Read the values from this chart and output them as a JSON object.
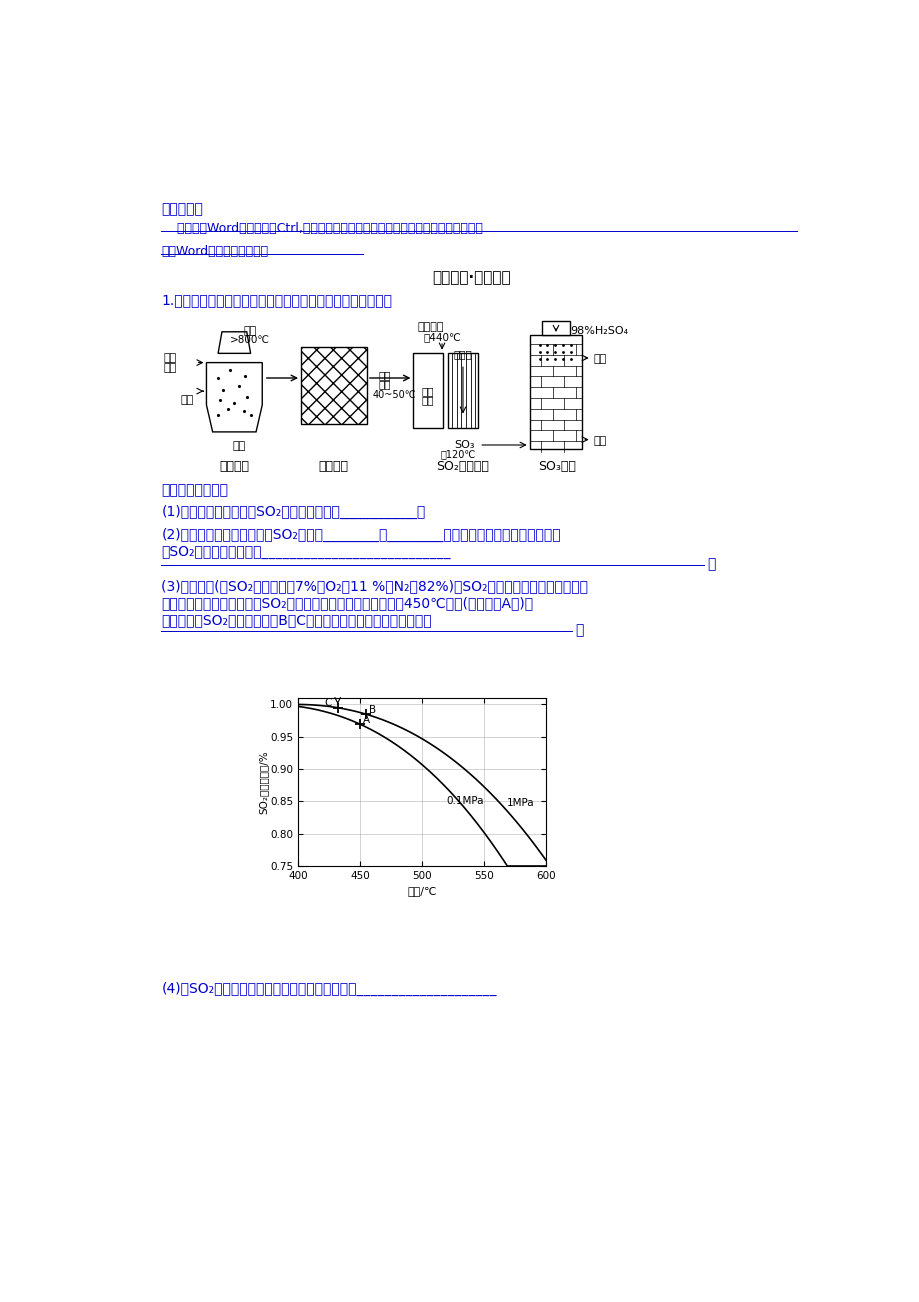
{
  "bg_color": "#ffffff",
  "text_color_blue": "#0000CC",
  "text_color_black": "#000000",
  "warm_tip_label": "温馨提示：",
  "warm_tip_line1": "    此套题为Word版，请按住Ctrl,滑动鼠标滚轴，调节合适的观看比例，答案解析附后。",
  "warm_tip_line2": "关闭Word文档返回原板块。",
  "section_title": "高效演练·跟踪检测",
  "question1_intro": "1.以黄铁矿为原料，采用接触法生产硫酸的流程可简示如下：",
  "q_section_label": "请回答下列问题：",
  "q1": "(1)在炉气制造中，生成SO₂的化学方程式为___________。",
  "q2a": "(2)炉气精制的作用是将含有SO₂的炉气________、________和干燥，如果炉气不经过精制，",
  "q2b": "对SO₂催化氧化的影响是___________________________",
  "q3_line1": "(3)精制炉气(含SO₂体积分数为7%，O₂为11 %，N₂为82%)中SO₂平衡转化率与温度及压强关",
  "q3_line2": "系如图所示。在实际生产中SO₂催化氧化反应的条件选择常压、450℃左右(对应图中A点)，",
  "q3_line3": "而没有选择SO₂转化率更高的B或C点对应的反应条件，其原因分别是",
  "q4": "(4)在SO₂催化氧化设备中设置热交换器的目的是____________________"
}
